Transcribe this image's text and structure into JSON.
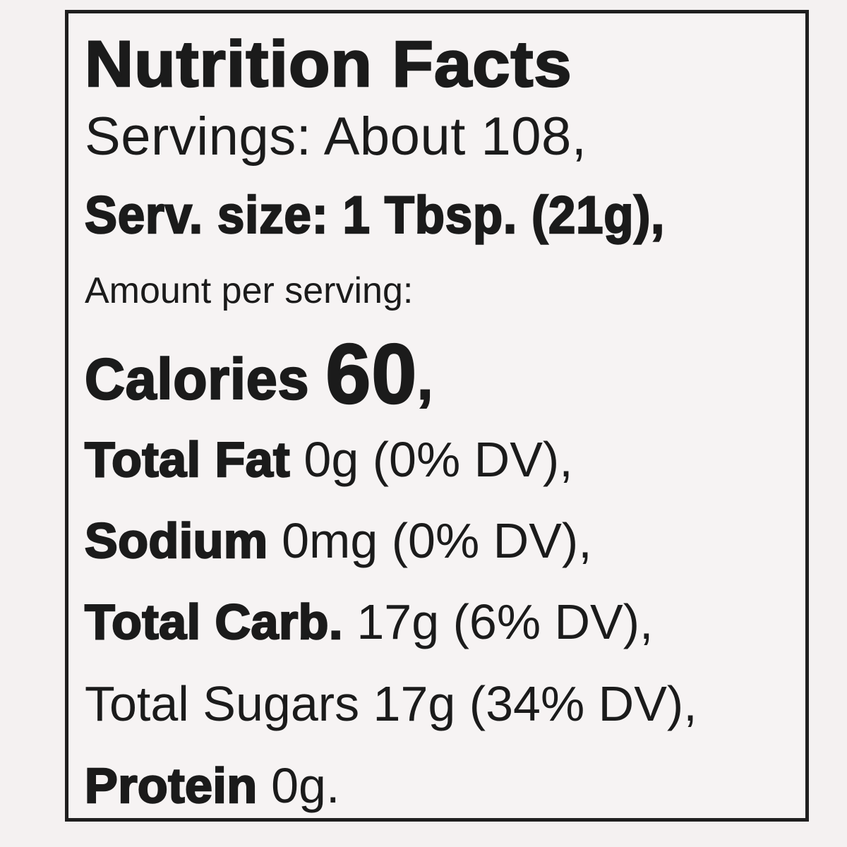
{
  "label": {
    "title": "Nutrition Facts",
    "servings": "Servings: About 108,",
    "serving_size": "Serv. size: 1 Tbsp. (21g),",
    "amount_per_serving": "Amount per serving:",
    "calories": {
      "label": "Calories",
      "value": "60",
      "suffix": ","
    },
    "nutrients": [
      {
        "name": "Total Fat",
        "amount": " 0g (0% DV),"
      },
      {
        "name": "Sodium",
        "amount": " 0mg (0% DV),"
      },
      {
        "name": "Total Carb.",
        "amount": " 17g (6% DV),"
      },
      {
        "name": "Total Sugars",
        "amount": " 17g (34% DV),"
      },
      {
        "name": "Protein",
        "amount": " 0g."
      }
    ]
  }
}
